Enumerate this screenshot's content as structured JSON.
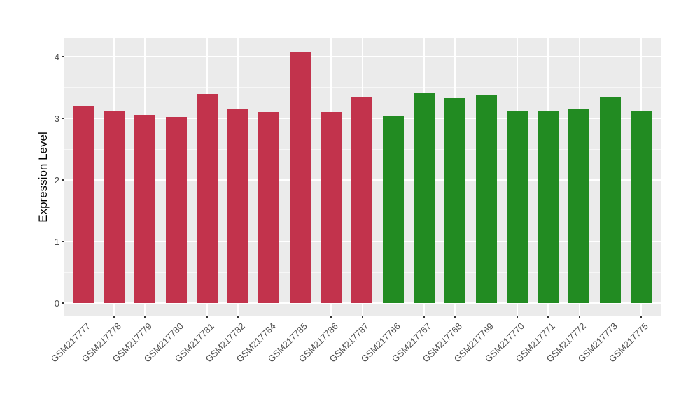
{
  "figure": {
    "background": "#FFFFFF"
  },
  "chart_data": {
    "type": "bar",
    "title": "",
    "xlabel": "",
    "ylabel": "Expression Level",
    "categories": [
      "GSM217777",
      "GSM217778",
      "GSM217779",
      "GSM217780",
      "GSM217781",
      "GSM217782",
      "GSM217784",
      "GSM217785",
      "GSM217786",
      "GSM217787",
      "GSM217766",
      "GSM217767",
      "GSM217768",
      "GSM217769",
      "GSM217770",
      "GSM217771",
      "GSM217772",
      "GSM217773",
      "GSM217775"
    ],
    "values": [
      3.2,
      3.12,
      3.06,
      3.02,
      3.4,
      3.16,
      3.1,
      4.08,
      3.1,
      3.34,
      3.04,
      3.41,
      3.33,
      3.37,
      3.12,
      3.13,
      3.15,
      3.35,
      3.11
    ],
    "bar_colors": [
      "#C2334C",
      "#C2334C",
      "#C2334C",
      "#C2334C",
      "#C2334C",
      "#C2334C",
      "#C2334C",
      "#C2334C",
      "#C2334C",
      "#C2334C",
      "#228B22",
      "#228B22",
      "#228B22",
      "#228B22",
      "#228B22",
      "#228B22",
      "#228B22",
      "#228B22",
      "#228B22"
    ],
    "groups": [
      {
        "name": "red-group",
        "color": "#C2334C",
        "categories": [
          "GSM217777",
          "GSM217778",
          "GSM217779",
          "GSM217780",
          "GSM217781",
          "GSM217782",
          "GSM217784",
          "GSM217785",
          "GSM217786",
          "GSM217787"
        ]
      },
      {
        "name": "green-group",
        "color": "#228B22",
        "categories": [
          "GSM217766",
          "GSM217767",
          "GSM217768",
          "GSM217769",
          "GSM217770",
          "GSM217771",
          "GSM217772",
          "GSM217773",
          "GSM217775"
        ]
      }
    ],
    "ylim": [
      0,
      4.3
    ],
    "yticks": [
      0,
      1,
      2,
      3,
      4
    ],
    "grid": "on",
    "legend": "none",
    "panel_background": "#EBEBEB",
    "gridline_color": "#FFFFFF",
    "tick_label_color": "#4D4D4D",
    "axis_title_color": "#000000"
  }
}
